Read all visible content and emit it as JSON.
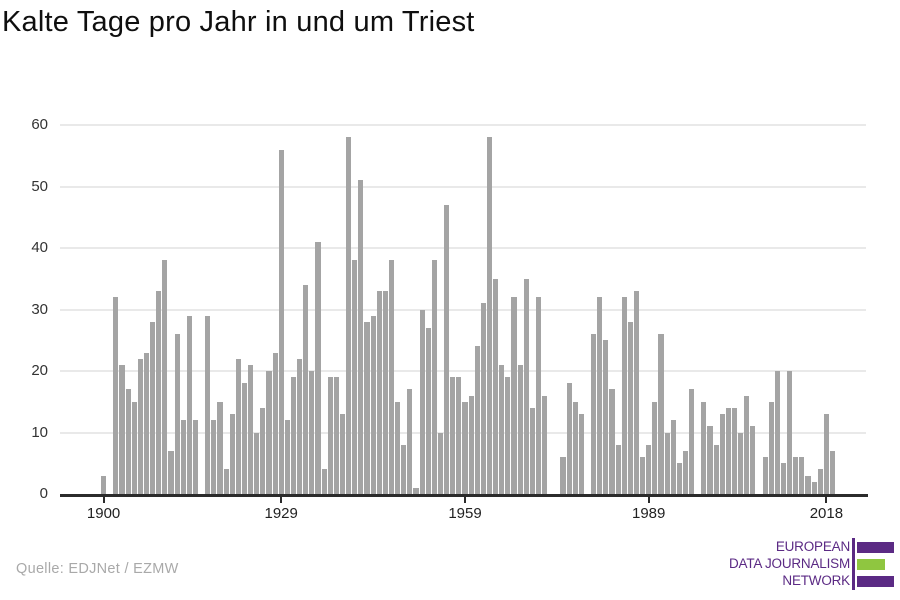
{
  "title": "Kalte Tage pro Jahr in und um Triest",
  "source": "Quelle: EDJNet / EZMW",
  "logo": {
    "line1": "EUROPEAN",
    "line2": "DATA JOURNALISM",
    "line3": "NETWORK",
    "purple": "#5b2a84",
    "green": "#8fc640"
  },
  "colors": {
    "bar": "#a4a4a4",
    "axis": "#2b2b2b",
    "grid": "#e9e9e9",
    "tick_label": "#222222",
    "title": "#0f0f0f",
    "source": "#a9a9a9"
  },
  "chart_data": {
    "type": "bar",
    "title": "Kalte Tage pro Jahr in und um Triest",
    "xlabel": "",
    "ylabel": "",
    "ylim": [
      0,
      60
    ],
    "yticks": [
      0,
      10,
      20,
      30,
      40,
      50,
      60
    ],
    "xticks": [
      1900,
      1929,
      1959,
      1989,
      2018
    ],
    "grid": true,
    "legend": false,
    "x": [
      1900,
      1901,
      1902,
      1903,
      1904,
      1905,
      1906,
      1907,
      1908,
      1909,
      1910,
      1911,
      1912,
      1913,
      1914,
      1915,
      1916,
      1917,
      1918,
      1919,
      1920,
      1921,
      1922,
      1923,
      1924,
      1925,
      1926,
      1927,
      1928,
      1929,
      1930,
      1931,
      1932,
      1933,
      1934,
      1935,
      1936,
      1937,
      1938,
      1939,
      1940,
      1941,
      1942,
      1943,
      1944,
      1945,
      1946,
      1947,
      1948,
      1949,
      1950,
      1951,
      1952,
      1953,
      1954,
      1955,
      1956,
      1957,
      1958,
      1959,
      1960,
      1961,
      1962,
      1963,
      1964,
      1965,
      1966,
      1967,
      1968,
      1969,
      1970,
      1971,
      1972,
      1973,
      1974,
      1975,
      1976,
      1977,
      1978,
      1979,
      1980,
      1981,
      1982,
      1983,
      1984,
      1985,
      1986,
      1987,
      1988,
      1989,
      1990,
      1991,
      1992,
      1993,
      1994,
      1995,
      1996,
      1997,
      1998,
      1999,
      2000,
      2001,
      2002,
      2003,
      2004,
      2005,
      2006,
      2007,
      2008,
      2009,
      2010,
      2011,
      2012,
      2013,
      2014,
      2015,
      2016,
      2017,
      2018,
      2019
    ],
    "values": [
      3,
      0,
      32,
      21,
      17,
      15,
      22,
      23,
      28,
      33,
      38,
      7,
      26,
      12,
      29,
      12,
      0,
      29,
      12,
      15,
      4,
      13,
      22,
      18,
      21,
      10,
      14,
      20,
      23,
      56,
      12,
      19,
      22,
      34,
      20,
      41,
      4,
      19,
      19,
      13,
      58,
      38,
      51,
      28,
      29,
      33,
      33,
      38,
      15,
      8,
      17,
      1,
      30,
      27,
      38,
      10,
      47,
      19,
      19,
      15,
      16,
      24,
      31,
      58,
      35,
      21,
      19,
      32,
      21,
      35,
      14,
      32,
      16,
      0,
      0,
      6,
      18,
      15,
      13,
      0,
      26,
      32,
      25,
      17,
      8,
      32,
      28,
      33,
      6,
      8,
      15,
      26,
      10,
      12,
      5,
      7,
      17,
      0,
      15,
      11,
      8,
      13,
      14,
      14,
      10,
      16,
      11,
      0,
      6,
      15,
      20,
      5,
      20,
      6,
      6,
      3,
      2,
      4,
      13,
      7
    ]
  }
}
